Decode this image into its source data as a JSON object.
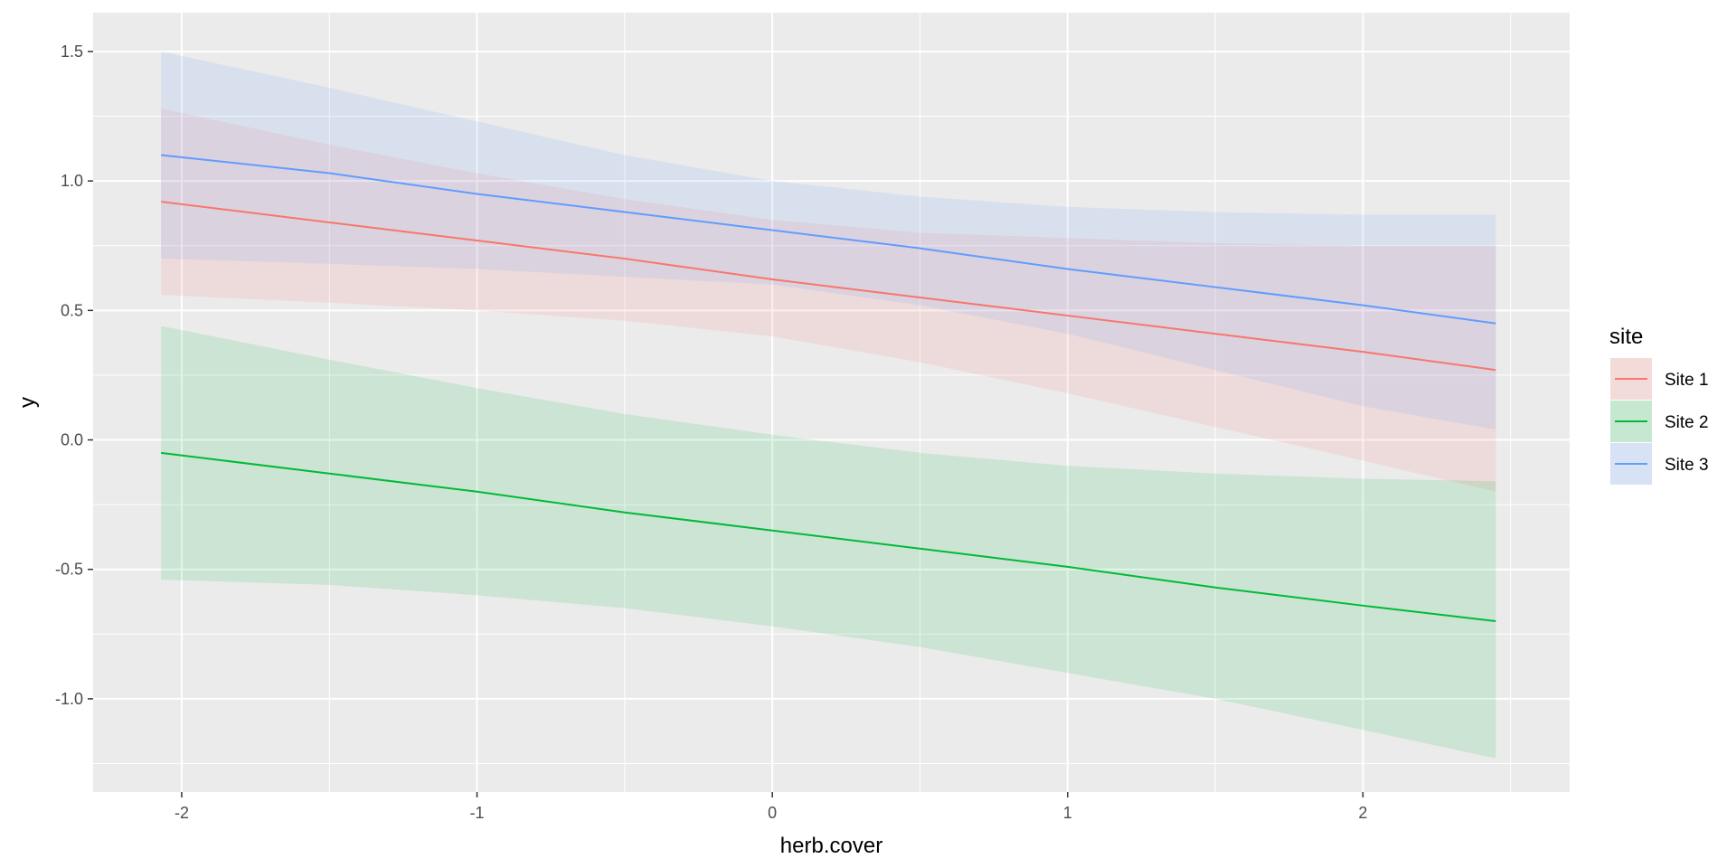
{
  "chart_data": {
    "type": "line",
    "xlabel": "herb.cover",
    "ylabel": "y",
    "xlim": [
      -2.3,
      2.7
    ],
    "ylim": [
      -1.36,
      1.65
    ],
    "x_ticks": [
      -2,
      -1,
      0,
      1,
      2
    ],
    "x_tick_labels": [
      "-2",
      "-1",
      "0",
      "1",
      "2"
    ],
    "y_ticks": [
      -1.0,
      -0.5,
      0.0,
      0.5,
      1.0,
      1.5
    ],
    "y_tick_labels": [
      "-1.0",
      "-0.5",
      "0.0",
      "0.5",
      "1.0",
      "1.5"
    ],
    "grid": true,
    "background": "#ebebeb",
    "legend": {
      "title": "site",
      "position": "right"
    },
    "series": [
      {
        "name": "Site 1",
        "color": "#f8766d",
        "x": [
          -2.07,
          -1.5,
          -1.0,
          -0.5,
          0.0,
          0.5,
          1.0,
          1.5,
          2.0,
          2.45
        ],
        "y": [
          0.92,
          0.84,
          0.77,
          0.7,
          0.62,
          0.55,
          0.48,
          0.41,
          0.34,
          0.27
        ],
        "lower": [
          0.56,
          0.53,
          0.5,
          0.46,
          0.4,
          0.3,
          0.18,
          0.05,
          -0.08,
          -0.2
        ],
        "upper": [
          1.28,
          1.14,
          1.03,
          0.93,
          0.85,
          0.8,
          0.78,
          0.76,
          0.75,
          0.75
        ]
      },
      {
        "name": "Site 2",
        "color": "#00ba38",
        "x": [
          -2.07,
          -1.5,
          -1.0,
          -0.5,
          0.0,
          0.5,
          1.0,
          1.5,
          2.0,
          2.45
        ],
        "y": [
          -0.05,
          -0.13,
          -0.2,
          -0.28,
          -0.35,
          -0.42,
          -0.49,
          -0.57,
          -0.64,
          -0.7
        ],
        "lower": [
          -0.54,
          -0.56,
          -0.6,
          -0.65,
          -0.72,
          -0.8,
          -0.9,
          -1.0,
          -1.12,
          -1.23
        ],
        "upper": [
          0.44,
          0.31,
          0.2,
          0.1,
          0.02,
          -0.05,
          -0.1,
          -0.13,
          -0.15,
          -0.16
        ]
      },
      {
        "name": "Site 3",
        "color": "#619cff",
        "x": [
          -2.07,
          -1.5,
          -1.0,
          -0.5,
          0.0,
          0.5,
          1.0,
          1.5,
          2.0,
          2.45
        ],
        "y": [
          1.1,
          1.03,
          0.95,
          0.88,
          0.81,
          0.74,
          0.66,
          0.59,
          0.52,
          0.45
        ],
        "lower": [
          0.7,
          0.68,
          0.66,
          0.63,
          0.6,
          0.52,
          0.41,
          0.27,
          0.13,
          0.04
        ],
        "upper": [
          1.5,
          1.36,
          1.23,
          1.1,
          1.0,
          0.94,
          0.9,
          0.88,
          0.87,
          0.87
        ]
      }
    ]
  }
}
